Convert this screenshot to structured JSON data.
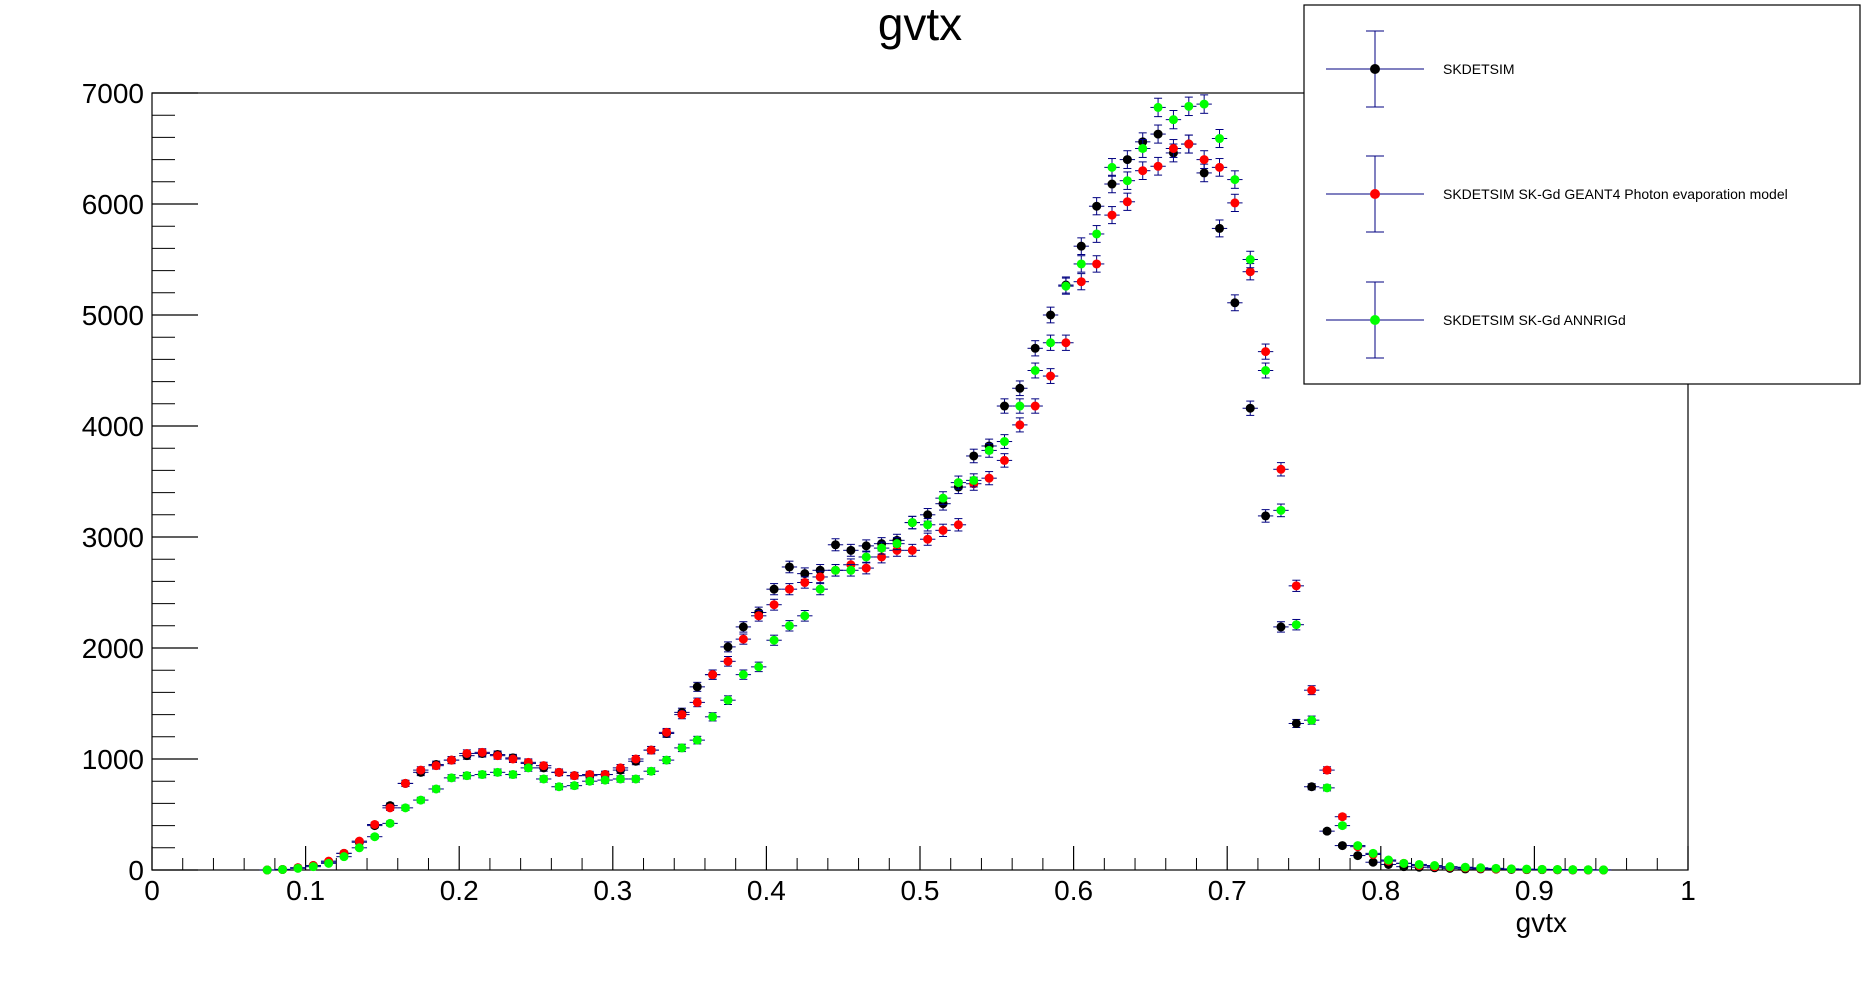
{
  "chart_data": {
    "type": "scatter",
    "title": "gvtx",
    "xlabel": "gvtx",
    "ylabel": "",
    "xlim": [
      0,
      1
    ],
    "ylim": [
      0,
      7000
    ],
    "x_ticks": [
      "0",
      "0.1",
      "0.2",
      "0.3",
      "0.4",
      "0.5",
      "0.6",
      "0.7",
      "0.8",
      "0.9",
      "1"
    ],
    "y_ticks": [
      "0",
      "1000",
      "2000",
      "3000",
      "4000",
      "5000",
      "6000",
      "7000"
    ],
    "bin_width": 0.01,
    "grid": false,
    "legend_position": "top-right",
    "x": [
      0.075,
      0.085,
      0.095,
      0.105,
      0.115,
      0.125,
      0.135,
      0.145,
      0.155,
      0.165,
      0.175,
      0.185,
      0.195,
      0.205,
      0.215,
      0.225,
      0.235,
      0.245,
      0.255,
      0.265,
      0.275,
      0.285,
      0.295,
      0.305,
      0.315,
      0.325,
      0.335,
      0.345,
      0.355,
      0.365,
      0.375,
      0.385,
      0.395,
      0.405,
      0.415,
      0.425,
      0.435,
      0.445,
      0.455,
      0.465,
      0.475,
      0.485,
      0.495,
      0.505,
      0.515,
      0.525,
      0.535,
      0.545,
      0.555,
      0.565,
      0.575,
      0.585,
      0.595,
      0.605,
      0.615,
      0.625,
      0.635,
      0.645,
      0.655,
      0.665,
      0.675,
      0.685,
      0.695,
      0.705,
      0.715,
      0.725,
      0.735,
      0.745,
      0.755,
      0.765,
      0.775,
      0.785,
      0.795,
      0.805,
      0.815,
      0.825,
      0.835,
      0.845,
      0.855,
      0.865,
      0.875,
      0.885,
      0.895,
      0.905,
      0.915,
      0.925,
      0.935,
      0.945
    ],
    "series": [
      {
        "name": "SKDETSIM",
        "color": "#000000",
        "values": [
          0,
          5,
          20,
          40,
          70,
          150,
          250,
          400,
          580,
          780,
          880,
          950,
          990,
          1030,
          1050,
          1040,
          1010,
          960,
          920,
          880,
          850,
          850,
          860,
          900,
          980,
          1080,
          1230,
          1420,
          1650,
          1760,
          2010,
          2190,
          2320,
          2530,
          2730,
          2670,
          2700,
          2930,
          2880,
          2920,
          2940,
          2970,
          3130,
          3200,
          3300,
          3450,
          3730,
          3820,
          4180,
          4340,
          4700,
          5000,
          5270,
          5620,
          5980,
          6180,
          6400,
          6560,
          6630,
          6460,
          6540,
          6280,
          5780,
          5110,
          4160,
          3190,
          2190,
          1320,
          750,
          350,
          220,
          130,
          70,
          50,
          30,
          25,
          20,
          15,
          10,
          10,
          8,
          5,
          3,
          3,
          2,
          1,
          1,
          0
        ]
      },
      {
        "name": "SKDETSIM SK-Gd GEANT4 Photon evaporation model",
        "color": "#ff0000",
        "values": [
          0,
          5,
          20,
          40,
          80,
          150,
          260,
          410,
          560,
          780,
          900,
          940,
          990,
          1050,
          1060,
          1030,
          1000,
          970,
          940,
          880,
          850,
          860,
          860,
          920,
          1000,
          1080,
          1240,
          1400,
          1510,
          1760,
          1880,
          2080,
          2290,
          2390,
          2530,
          2590,
          2640,
          2700,
          2750,
          2720,
          2820,
          2880,
          2880,
          2980,
          3060,
          3110,
          3480,
          3530,
          3690,
          4010,
          4180,
          4450,
          4750,
          5300,
          5460,
          5900,
          6020,
          6300,
          6340,
          6500,
          6540,
          6400,
          6330,
          6010,
          5390,
          4670,
          3610,
          2560,
          1620,
          900,
          480,
          210,
          140,
          80,
          60,
          40,
          30,
          25,
          20,
          15,
          10,
          8,
          5,
          5,
          3,
          2,
          1,
          0
        ]
      },
      {
        "name": "SKDETSIM SK-Gd ANNRIGd",
        "color": "#00ff00",
        "values": [
          0,
          5,
          15,
          30,
          60,
          120,
          200,
          300,
          420,
          560,
          630,
          730,
          830,
          850,
          860,
          880,
          860,
          920,
          820,
          750,
          760,
          800,
          810,
          820,
          820,
          890,
          990,
          1100,
          1170,
          1380,
          1530,
          1760,
          1830,
          2070,
          2200,
          2290,
          2530,
          2700,
          2700,
          2820,
          2900,
          2940,
          3130,
          3110,
          3350,
          3490,
          3510,
          3780,
          3860,
          4180,
          4500,
          4750,
          5260,
          5460,
          5730,
          6330,
          6210,
          6500,
          6870,
          6760,
          6880,
          6900,
          6590,
          6220,
          5500,
          4500,
          3240,
          2210,
          1350,
          740,
          400,
          220,
          150,
          90,
          60,
          50,
          40,
          30,
          25,
          20,
          15,
          10,
          8,
          6,
          5,
          3,
          2,
          1
        ]
      }
    ]
  }
}
